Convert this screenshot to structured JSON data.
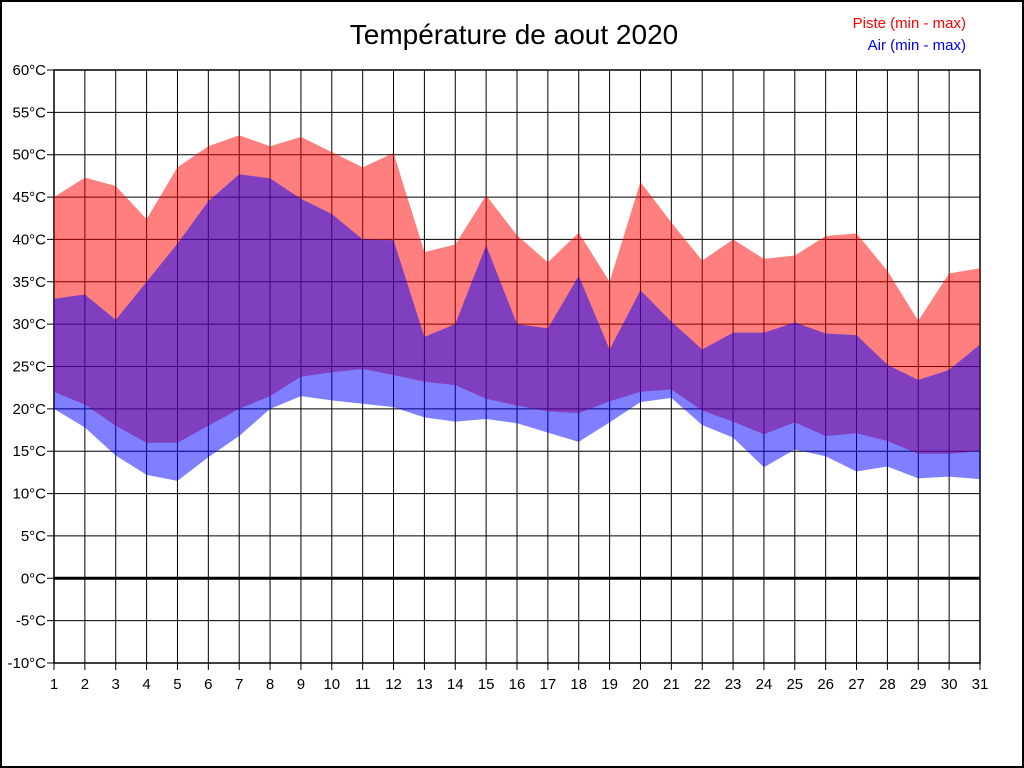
{
  "title": "Température de aout 2020",
  "legend": {
    "items": [
      {
        "label": "Piste (min - max)",
        "color": "#ff0000"
      },
      {
        "label": "Air (min - max)",
        "color": "#0000ff"
      }
    ],
    "position": "top-right"
  },
  "chart_data": {
    "type": "area",
    "subtype": "min-max range bands",
    "title": "Température de aout 2020",
    "xlabel": "",
    "ylabel": "",
    "x": [
      1,
      2,
      3,
      4,
      5,
      6,
      7,
      8,
      9,
      10,
      11,
      12,
      13,
      14,
      15,
      16,
      17,
      18,
      19,
      20,
      21,
      22,
      23,
      24,
      25,
      26,
      27,
      28,
      29,
      30,
      31
    ],
    "xticks": [
      "1",
      "2",
      "3",
      "4",
      "5",
      "6",
      "7",
      "8",
      "9",
      "10",
      "11",
      "12",
      "13",
      "14",
      "15",
      "16",
      "17",
      "18",
      "19",
      "20",
      "21",
      "22",
      "23",
      "24",
      "25",
      "26",
      "27",
      "28",
      "29",
      "30",
      "31"
    ],
    "yticks": [
      "60°C",
      "55°C",
      "50°C",
      "45°C",
      "40°C",
      "35°C",
      "30°C",
      "25°C",
      "20°C",
      "15°C",
      "10°C",
      "5°C",
      "0°C",
      "-5°C",
      "-10°C"
    ],
    "ylim": [
      -10,
      60
    ],
    "ytick_step": 5,
    "grid": true,
    "zero_line": true,
    "zero_line_width": 3,
    "grid_color": "#000000",
    "legend_position": "top-right",
    "series": [
      {
        "name": "Piste max",
        "values": [
          45.0,
          47.3,
          46.3,
          42.4,
          48.5,
          51.0,
          52.3,
          51.0,
          52.1,
          50.3,
          48.5,
          50.2,
          38.5,
          39.4,
          45.2,
          40.5,
          37.3,
          40.8,
          35.0,
          46.8,
          42.0,
          37.5,
          40.0,
          37.7,
          38.1,
          40.4,
          40.7,
          36.3,
          30.4,
          36.0,
          36.6
        ]
      },
      {
        "name": "Piste min",
        "values": [
          22.0,
          20.5,
          18.0,
          16.0,
          16.0,
          18.0,
          20.0,
          21.5,
          23.8,
          24.3,
          24.7,
          24.0,
          23.2,
          22.8,
          21.2,
          20.4,
          19.7,
          19.5,
          20.9,
          22.0,
          22.3,
          19.8,
          18.5,
          17.0,
          18.4,
          16.8,
          17.1,
          16.2,
          14.7,
          14.7,
          15.0
        ]
      },
      {
        "name": "Air max",
        "values": [
          33.0,
          33.5,
          30.5,
          35.0,
          39.5,
          44.5,
          47.7,
          47.2,
          44.8,
          43.0,
          40.0,
          39.9,
          28.5,
          30.0,
          39.3,
          30.0,
          29.5,
          35.7,
          27.0,
          34.0,
          30.3,
          27.0,
          29.0,
          29.0,
          30.2,
          28.9,
          28.7,
          25.2,
          23.4,
          24.6,
          27.6
        ]
      },
      {
        "name": "Air min",
        "values": [
          20.0,
          17.8,
          14.5,
          12.2,
          11.5,
          14.3,
          16.8,
          20.0,
          21.5,
          21.0,
          20.6,
          20.2,
          19.0,
          18.5,
          18.8,
          18.3,
          17.2,
          16.1,
          18.4,
          20.8,
          21.3,
          18.1,
          16.6,
          13.1,
          15.2,
          14.4,
          12.6,
          13.2,
          11.8,
          12.0,
          11.7
        ]
      }
    ],
    "bands": [
      {
        "label": "Piste (min - max)",
        "upper_series": 0,
        "lower_series": 1,
        "fill": "rgba(255,0,0,0.5)"
      },
      {
        "label": "Air (min - max)",
        "upper_series": 2,
        "lower_series": 3,
        "fill": "rgba(0,0,255,0.5)"
      }
    ]
  }
}
